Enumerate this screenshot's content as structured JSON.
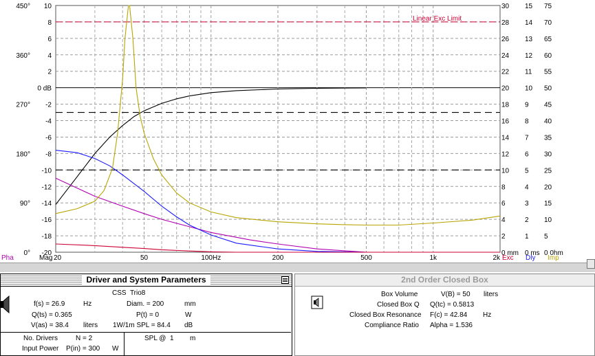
{
  "chart_data": {
    "type": "line",
    "x_scale": "log",
    "xlim": [
      20,
      2000
    ],
    "x_ticks": [
      {
        "value": 20,
        "label": "20"
      },
      {
        "value": 50,
        "label": "50"
      },
      {
        "value": 100,
        "label": "100Hz"
      },
      {
        "value": 200,
        "label": "200"
      },
      {
        "value": 500,
        "label": "500"
      },
      {
        "value": 1000,
        "label": "1k"
      },
      {
        "value": 2000,
        "label": "2k"
      }
    ],
    "x_minor_ticks": [
      30,
      40,
      60,
      70,
      80,
      90,
      300,
      400,
      600,
      700,
      800,
      900
    ],
    "ylim": [
      -20,
      10
    ],
    "y_ticks": [
      "10",
      "8",
      "6",
      "4",
      "2",
      "0 dB",
      "-2",
      "-4",
      "-6",
      "-8",
      "-10",
      "-12",
      "-14",
      "-16",
      "-18",
      "-20"
    ],
    "phase_ticks": [
      {
        "label": "450°",
        "dB": 10
      },
      {
        "label": "360°",
        "dB": 4
      },
      {
        "label": "270°",
        "dB": -2
      },
      {
        "label": "180°",
        "dB": -8
      },
      {
        "label": "90°",
        "dB": -14
      },
      {
        "label": "0°",
        "dB": -20
      }
    ],
    "exc_ticks": [
      "30",
      "28",
      "26",
      "24",
      "22",
      "20",
      "18",
      "16",
      "14",
      "12",
      "10",
      "8",
      "6",
      "4",
      "2",
      "0 mm"
    ],
    "dly_ticks": [
      "15",
      "14",
      "13",
      "12",
      "11",
      "10",
      "9",
      "8",
      "7",
      "6",
      "5",
      "4",
      "3",
      "2",
      "1",
      "0 ms"
    ],
    "imp_ticks": [
      "75",
      "70",
      "65",
      "60",
      "55",
      "50",
      "45",
      "40",
      "35",
      "30",
      "25",
      "20",
      "15",
      "10",
      "5",
      "0 0hm"
    ],
    "legend": [
      {
        "label": "Pha",
        "color": "#b000b0"
      },
      {
        "label": "Mag",
        "color": "#000000"
      },
      {
        "label": "Exc",
        "color": "#cc0033"
      },
      {
        "label": "Dly",
        "color": "#1a1aff"
      },
      {
        "label": "Imp",
        "color": "#b8a400"
      }
    ],
    "annotation": "Linear Exc Limit",
    "limit_line_dB": 8,
    "dashed_lines_dB": [
      -3,
      -10
    ],
    "series": [
      {
        "name": "Mag",
        "color": "#000000",
        "points": [
          [
            20,
            -14.2
          ],
          [
            25,
            -10.8
          ],
          [
            30,
            -8
          ],
          [
            35,
            -6
          ],
          [
            40,
            -4.6
          ],
          [
            45,
            -3.5
          ],
          [
            50,
            -2.8
          ],
          [
            60,
            -1.9
          ],
          [
            70,
            -1.35
          ],
          [
            80,
            -1.0
          ],
          [
            100,
            -0.6
          ],
          [
            130,
            -0.35
          ],
          [
            200,
            -0.15
          ],
          [
            300,
            -0.07
          ],
          [
            500,
            -0.02
          ]
        ]
      },
      {
        "name": "Pha",
        "color": "#b000b0",
        "points": [
          [
            20,
            -11
          ],
          [
            25,
            -12.2
          ],
          [
            30,
            -13.2
          ],
          [
            40,
            -14.4
          ],
          [
            50,
            -15.3
          ],
          [
            60,
            -16
          ],
          [
            80,
            -16.9
          ],
          [
            100,
            -17.6
          ],
          [
            150,
            -18.5
          ],
          [
            200,
            -19
          ],
          [
            300,
            -19.6
          ],
          [
            500,
            -20
          ],
          [
            1000,
            -20
          ],
          [
            2000,
            -20
          ]
        ]
      },
      {
        "name": "Dly",
        "color": "#1a1aff",
        "points": [
          [
            20,
            -7.6
          ],
          [
            25,
            -7.9
          ],
          [
            30,
            -8.6
          ],
          [
            35,
            -9.5
          ],
          [
            40,
            -10.6
          ],
          [
            50,
            -12.6
          ],
          [
            60,
            -14.4
          ],
          [
            70,
            -15.7
          ],
          [
            80,
            -16.7
          ],
          [
            100,
            -17.9
          ],
          [
            130,
            -18.9
          ],
          [
            200,
            -19.6
          ],
          [
            300,
            -19.9
          ],
          [
            500,
            -20
          ]
        ]
      },
      {
        "name": "Exc",
        "color": "#cc0033",
        "points": [
          [
            20,
            -19
          ],
          [
            30,
            -19.2
          ],
          [
            40,
            -19.4
          ],
          [
            50,
            -19.55
          ],
          [
            60,
            -19.7
          ],
          [
            80,
            -19.85
          ],
          [
            100,
            -19.95
          ],
          [
            130,
            -20
          ],
          [
            200,
            -20
          ],
          [
            2000,
            -20
          ]
        ]
      },
      {
        "name": "Imp",
        "color": "#b8a400",
        "points": [
          [
            20,
            -15.3
          ],
          [
            25,
            -14.7
          ],
          [
            30,
            -13.8
          ],
          [
            33,
            -12.5
          ],
          [
            36,
            -9.8
          ],
          [
            38,
            -5.5
          ],
          [
            40,
            1
          ],
          [
            41,
            6
          ],
          [
            42.5,
            10
          ],
          [
            43,
            10
          ],
          [
            44.5,
            6
          ],
          [
            46,
            0
          ],
          [
            48,
            -3.5
          ],
          [
            50,
            -5.5
          ],
          [
            55,
            -8.6
          ],
          [
            60,
            -10.6
          ],
          [
            70,
            -12.8
          ],
          [
            80,
            -14
          ],
          [
            100,
            -15.1
          ],
          [
            130,
            -15.8
          ],
          [
            200,
            -16.3
          ],
          [
            300,
            -16.55
          ],
          [
            400,
            -16.65
          ],
          [
            500,
            -16.7
          ],
          [
            700,
            -16.7
          ],
          [
            1000,
            -16.45
          ],
          [
            1500,
            -16.1
          ],
          [
            2000,
            -15.6
          ]
        ]
      }
    ]
  },
  "driver_panel": {
    "title": "Driver and System Parameters",
    "driver_name": "CSS  Trio8",
    "fs": "f(s) = 26.9",
    "fs_unit": "Hz",
    "qts": "Q(ts) = 0.365",
    "vas": "V(as) = 38.4",
    "vas_unit": "liters",
    "diam": "Diam. = 200",
    "diam_unit": "mm",
    "pt": "P(t) = 0",
    "pt_unit": "W",
    "spl_label": "1W/1m SPL = 84.4",
    "spl_unit": "dB",
    "num_drivers_label": "No. Drivers",
    "num_drivers": "N = 2",
    "spl_at": "SPL @  1",
    "spl_at_unit": "m",
    "input_power_label": "Input Power",
    "input_power": "P(in) = 300",
    "input_power_unit": "W"
  },
  "box_panel": {
    "title": "2nd Order Closed Box",
    "rows": [
      {
        "label": "Box Volume",
        "value": "V(B) = 50",
        "unit": "liters"
      },
      {
        "label": "Closed Box Q",
        "value": "Q(tc) = 0.5813",
        "unit": ""
      },
      {
        "label": "Closed Box Resonance",
        "value": "F(c) = 42.84",
        "unit": "Hz"
      },
      {
        "label": "Compliance Ratio",
        "value": "Alpha = 1.536",
        "unit": ""
      }
    ]
  }
}
